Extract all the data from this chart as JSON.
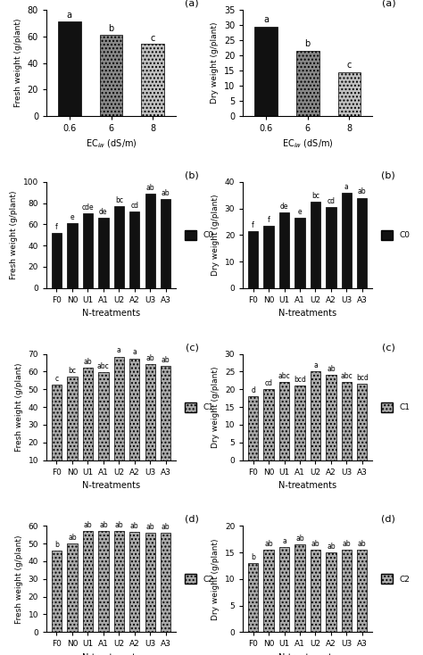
{
  "panel_a_left": {
    "categories": [
      "0.6",
      "6",
      "8"
    ],
    "values": [
      71.5,
      61.5,
      54.5
    ],
    "labels": [
      "a",
      "b",
      "c"
    ],
    "ylabel": "Fresh weight (g/plant)",
    "xlabel": "EC$_{iw}$ (dS/m)",
    "ylim": [
      0,
      80
    ],
    "yticks": [
      0,
      20,
      40,
      60,
      80
    ],
    "panel_label": "(a)",
    "bar_styles": [
      {
        "color": "#111111",
        "hatch": ""
      },
      {
        "color": "#888888",
        "hatch": "...."
      },
      {
        "color": "#c0c0c0",
        "hatch": "...."
      }
    ]
  },
  "panel_a_right": {
    "categories": [
      "0.6",
      "6",
      "8"
    ],
    "values": [
      29.5,
      21.5,
      14.5
    ],
    "labels": [
      "a",
      "b",
      "c"
    ],
    "ylabel": "Dry weight (g/plant)",
    "xlabel": "EC$_{iw}$ (dS/m)",
    "ylim": [
      0,
      35
    ],
    "yticks": [
      0,
      5,
      10,
      15,
      20,
      25,
      30,
      35
    ],
    "panel_label": "(a)",
    "bar_styles": [
      {
        "color": "#111111",
        "hatch": ""
      },
      {
        "color": "#888888",
        "hatch": "...."
      },
      {
        "color": "#c0c0c0",
        "hatch": "...."
      }
    ]
  },
  "panel_b_left": {
    "categories": [
      "F0",
      "N0",
      "U1",
      "A1",
      "U2",
      "A2",
      "U3",
      "A3"
    ],
    "values": [
      52,
      61,
      70,
      66,
      77,
      72,
      89,
      84
    ],
    "labels": [
      "f",
      "e",
      "cde",
      "de",
      "bc",
      "cd",
      "ab",
      "ab"
    ],
    "ylabel": "Fresh weight (g/plant)",
    "xlabel": "N-treatments",
    "ylim": [
      0,
      100
    ],
    "yticks": [
      0,
      20,
      40,
      60,
      80,
      100
    ],
    "panel_label": "(b)",
    "legend": "C0",
    "bar_style": {
      "color": "#111111",
      "hatch": ""
    }
  },
  "panel_b_right": {
    "categories": [
      "F0",
      "N0",
      "U1",
      "A1",
      "U2",
      "A2",
      "U3",
      "A3"
    ],
    "values": [
      21.5,
      23.5,
      28.5,
      26.5,
      32.5,
      30.5,
      36,
      34
    ],
    "labels": [
      "f",
      "f",
      "de",
      "e",
      "bc",
      "cd",
      "a",
      "ab"
    ],
    "ylabel": "Dry weight (g/plant)",
    "xlabel": "N-treatments",
    "ylim": [
      0,
      40
    ],
    "yticks": [
      0,
      10,
      20,
      30,
      40
    ],
    "panel_label": "(b)",
    "legend": "C0",
    "bar_style": {
      "color": "#111111",
      "hatch": ""
    }
  },
  "panel_c_left": {
    "categories": [
      "F0",
      "N0",
      "U1",
      "A1",
      "U2",
      "A2",
      "U3",
      "A3"
    ],
    "values": [
      52.5,
      57,
      62,
      59.5,
      68.5,
      67.5,
      64,
      63
    ],
    "labels": [
      "c",
      "bc",
      "ab",
      "abc",
      "a",
      "a",
      "ab",
      "ab"
    ],
    "ylabel": "Fresh weight (g/plant)",
    "xlabel": "N-treatments",
    "ylim": [
      10,
      70
    ],
    "yticks": [
      10,
      20,
      30,
      40,
      50,
      60,
      70
    ],
    "panel_label": "(c)",
    "legend": "C1",
    "bar_style": {
      "color": "#aaaaaa",
      "hatch": "...."
    }
  },
  "panel_c_right": {
    "categories": [
      "F0",
      "N0",
      "U1",
      "A1",
      "U2",
      "A2",
      "U3",
      "A3"
    ],
    "values": [
      18,
      20,
      22,
      21,
      25,
      24,
      22,
      21.5
    ],
    "labels": [
      "d",
      "cd",
      "abc",
      "bcd",
      "a",
      "ab",
      "abc",
      "bcd"
    ],
    "ylabel": "Dry weight (g/plant)",
    "xlabel": "N-treatments",
    "ylim": [
      0,
      30
    ],
    "yticks": [
      0,
      5,
      10,
      15,
      20,
      25,
      30
    ],
    "panel_label": "(c)",
    "legend": "C1",
    "bar_style": {
      "color": "#aaaaaa",
      "hatch": "...."
    }
  },
  "panel_d_left": {
    "categories": [
      "F0",
      "N0",
      "U1",
      "A1",
      "U2",
      "A2",
      "U3",
      "A3"
    ],
    "values": [
      46,
      50,
      57,
      57,
      57,
      56.5,
      56,
      56
    ],
    "labels": [
      "b",
      "ab",
      "ab",
      "ab",
      "ab",
      "ab",
      "ab",
      "ab"
    ],
    "ylabel": "Fresh weight (g/plant)",
    "xlabel": "N-treatments",
    "ylim": [
      0,
      60
    ],
    "yticks": [
      0,
      10,
      20,
      30,
      40,
      50,
      60
    ],
    "panel_label": "(d)",
    "legend": "C2",
    "bar_style": {
      "color": "#aaaaaa",
      "hatch": "...."
    }
  },
  "panel_d_right": {
    "categories": [
      "F0",
      "N0",
      "U1",
      "A1",
      "U2",
      "A2",
      "U3",
      "A3"
    ],
    "values": [
      13,
      15.5,
      16,
      16.5,
      15.5,
      15,
      15.5,
      15.5
    ],
    "labels": [
      "b",
      "ab",
      "a",
      "ab",
      "ab",
      "ab",
      "ab",
      "ab"
    ],
    "ylabel": "Dry weight (g/plant)",
    "xlabel": "N-treatments",
    "ylim": [
      0,
      20
    ],
    "yticks": [
      0,
      5,
      10,
      15,
      20
    ],
    "panel_label": "(d)",
    "legend": "C2",
    "bar_style": {
      "color": "#aaaaaa",
      "hatch": "...."
    }
  }
}
